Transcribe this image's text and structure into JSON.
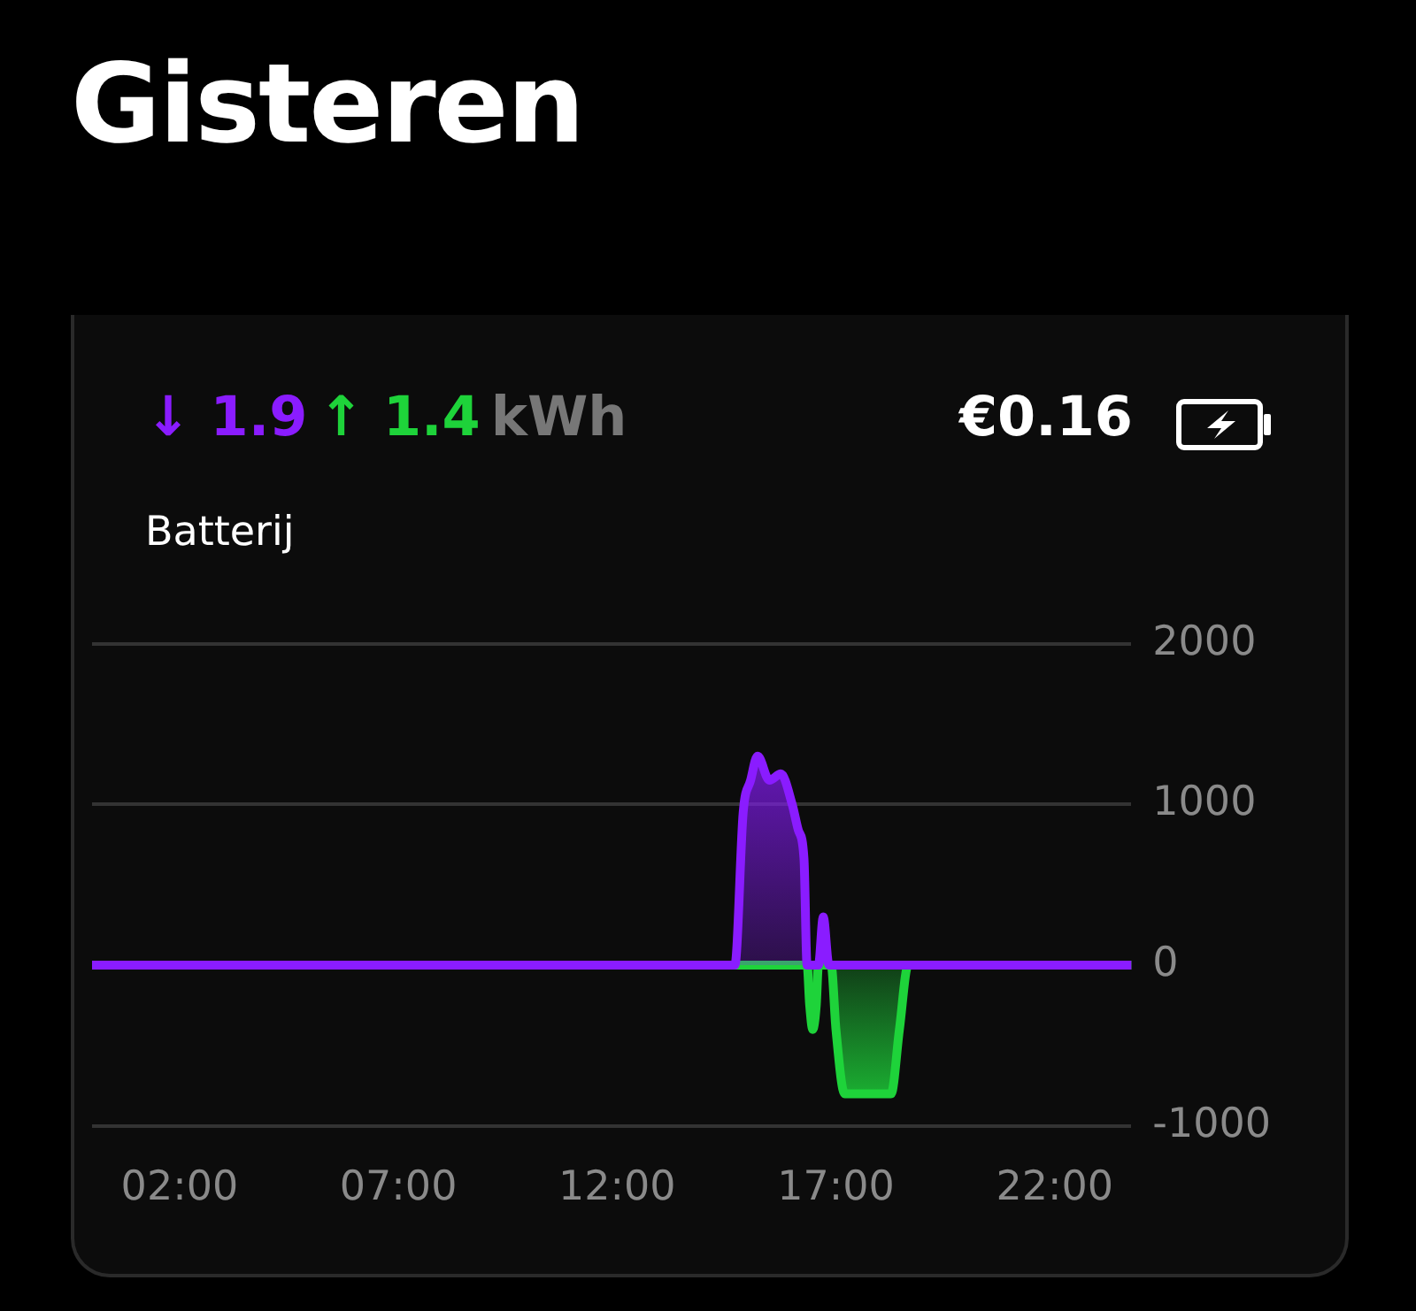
{
  "chart_data": {
    "type": "area",
    "title": "Gisteren",
    "subtitle": "Batterij",
    "annotations": [
      "↓ 1.9",
      "↑ 1.4",
      "kWh",
      "€0.16"
    ],
    "xlim": [
      0,
      23.75
    ],
    "xticks": [
      {
        "value": 2,
        "label": "02:00"
      },
      {
        "value": 7,
        "label": "07:00"
      },
      {
        "value": 12,
        "label": "12:00"
      },
      {
        "value": 17,
        "label": "17:00"
      },
      {
        "value": 22,
        "label": "22:00"
      }
    ],
    "ylim": [
      -1000,
      2000
    ],
    "yticks": [
      -1000,
      0,
      1000,
      2000
    ],
    "grid": "y",
    "legend": false,
    "marker": "none",
    "line_style": "solid",
    "series": [
      {
        "color": "#8a1cff",
        "x": [
          0,
          14.5,
          14.69,
          14.88,
          15.05,
          15.21,
          15.48,
          15.74,
          16.0,
          16.14,
          16.27,
          16.34,
          16.6,
          16.71,
          16.84,
          23.75
        ],
        "values": [
          0,
          0,
          0,
          950,
          1150,
          1300,
          1150,
          1190,
          1000,
          840,
          660,
          0,
          0,
          300,
          0,
          0
        ]
      },
      {
        "color": "#1ed33a",
        "x": [
          0,
          16.34,
          16.4,
          16.47,
          16.55,
          16.6,
          16.89,
          17.0,
          17.2,
          18.26,
          18.45,
          18.65,
          23.75
        ],
        "values": [
          0,
          0,
          -250,
          -400,
          -250,
          0,
          0,
          -400,
          -800,
          -800,
          -400,
          0,
          0
        ]
      }
    ]
  }
}
